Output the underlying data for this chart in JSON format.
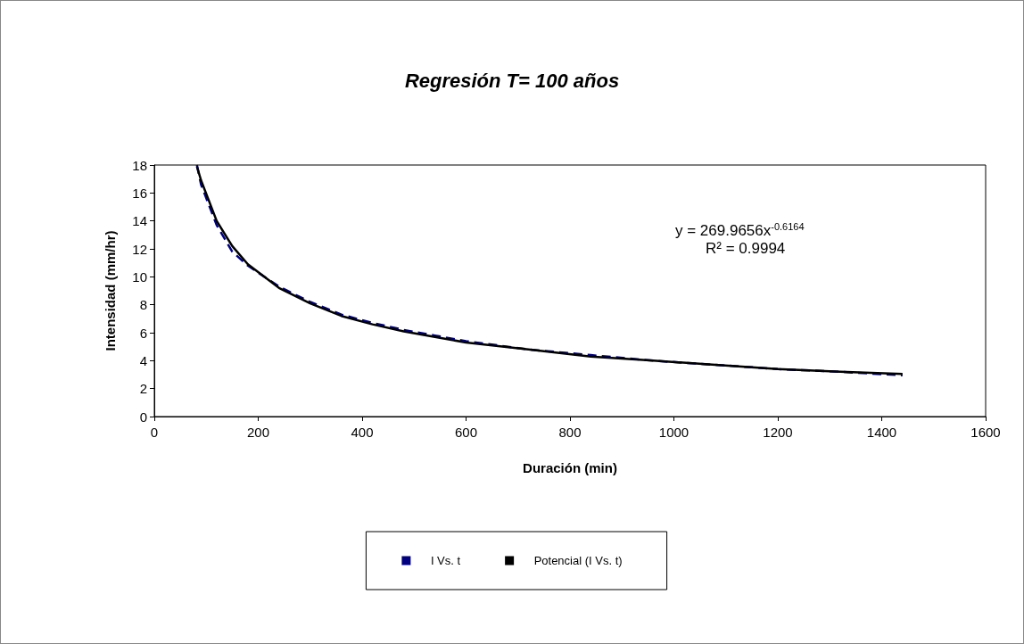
{
  "chart_data": {
    "type": "line",
    "title": "Regresión T= 100 años",
    "xlabel": "Duración (min)",
    "ylabel": "Intensidad (mm/hr)",
    "xlim": [
      0,
      1600
    ],
    "xticks": [
      0,
      200,
      400,
      600,
      800,
      1000,
      1200,
      1400,
      1600
    ],
    "ylim": [
      0,
      18
    ],
    "yticks": [
      0,
      2,
      4,
      6,
      8,
      10,
      12,
      14,
      16,
      18
    ],
    "grid": false,
    "legend": "bottom",
    "marker": "none",
    "annotations": [
      "y = 269.9656x$^{-0.6164}$",
      "R² = 0.9994"
    ],
    "series": [
      {
        "name": "I Vs. t",
        "color": "#000080",
        "line_style": "dashed",
        "x": [
          82,
          90,
          120,
          150,
          180,
          240,
          300,
          360,
          420,
          480,
          540,
          600,
          720,
          840,
          960,
          1080,
          1200,
          1320,
          1440
        ],
        "values": [
          18,
          16.6,
          13.7,
          11.8,
          10.8,
          9.3,
          8.2,
          7.3,
          6.7,
          6.2,
          5.8,
          5.4,
          4.8,
          4.4,
          4.0,
          3.7,
          3.4,
          3.2,
          2.95
        ]
      },
      {
        "name": "Potencial (I Vs. t)",
        "color": "#000000",
        "line_style": "solid",
        "x": [
          82,
          90,
          120,
          150,
          180,
          240,
          300,
          360,
          420,
          480,
          540,
          600,
          720,
          840,
          960,
          1080,
          1200,
          1320,
          1440
        ],
        "values": [
          17.9,
          16.9,
          14.0,
          12.2,
          10.9,
          9.2,
          8.1,
          7.2,
          6.6,
          6.1,
          5.7,
          5.3,
          4.8,
          4.3,
          4.0,
          3.7,
          3.4,
          3.2,
          3.05
        ]
      }
    ]
  }
}
